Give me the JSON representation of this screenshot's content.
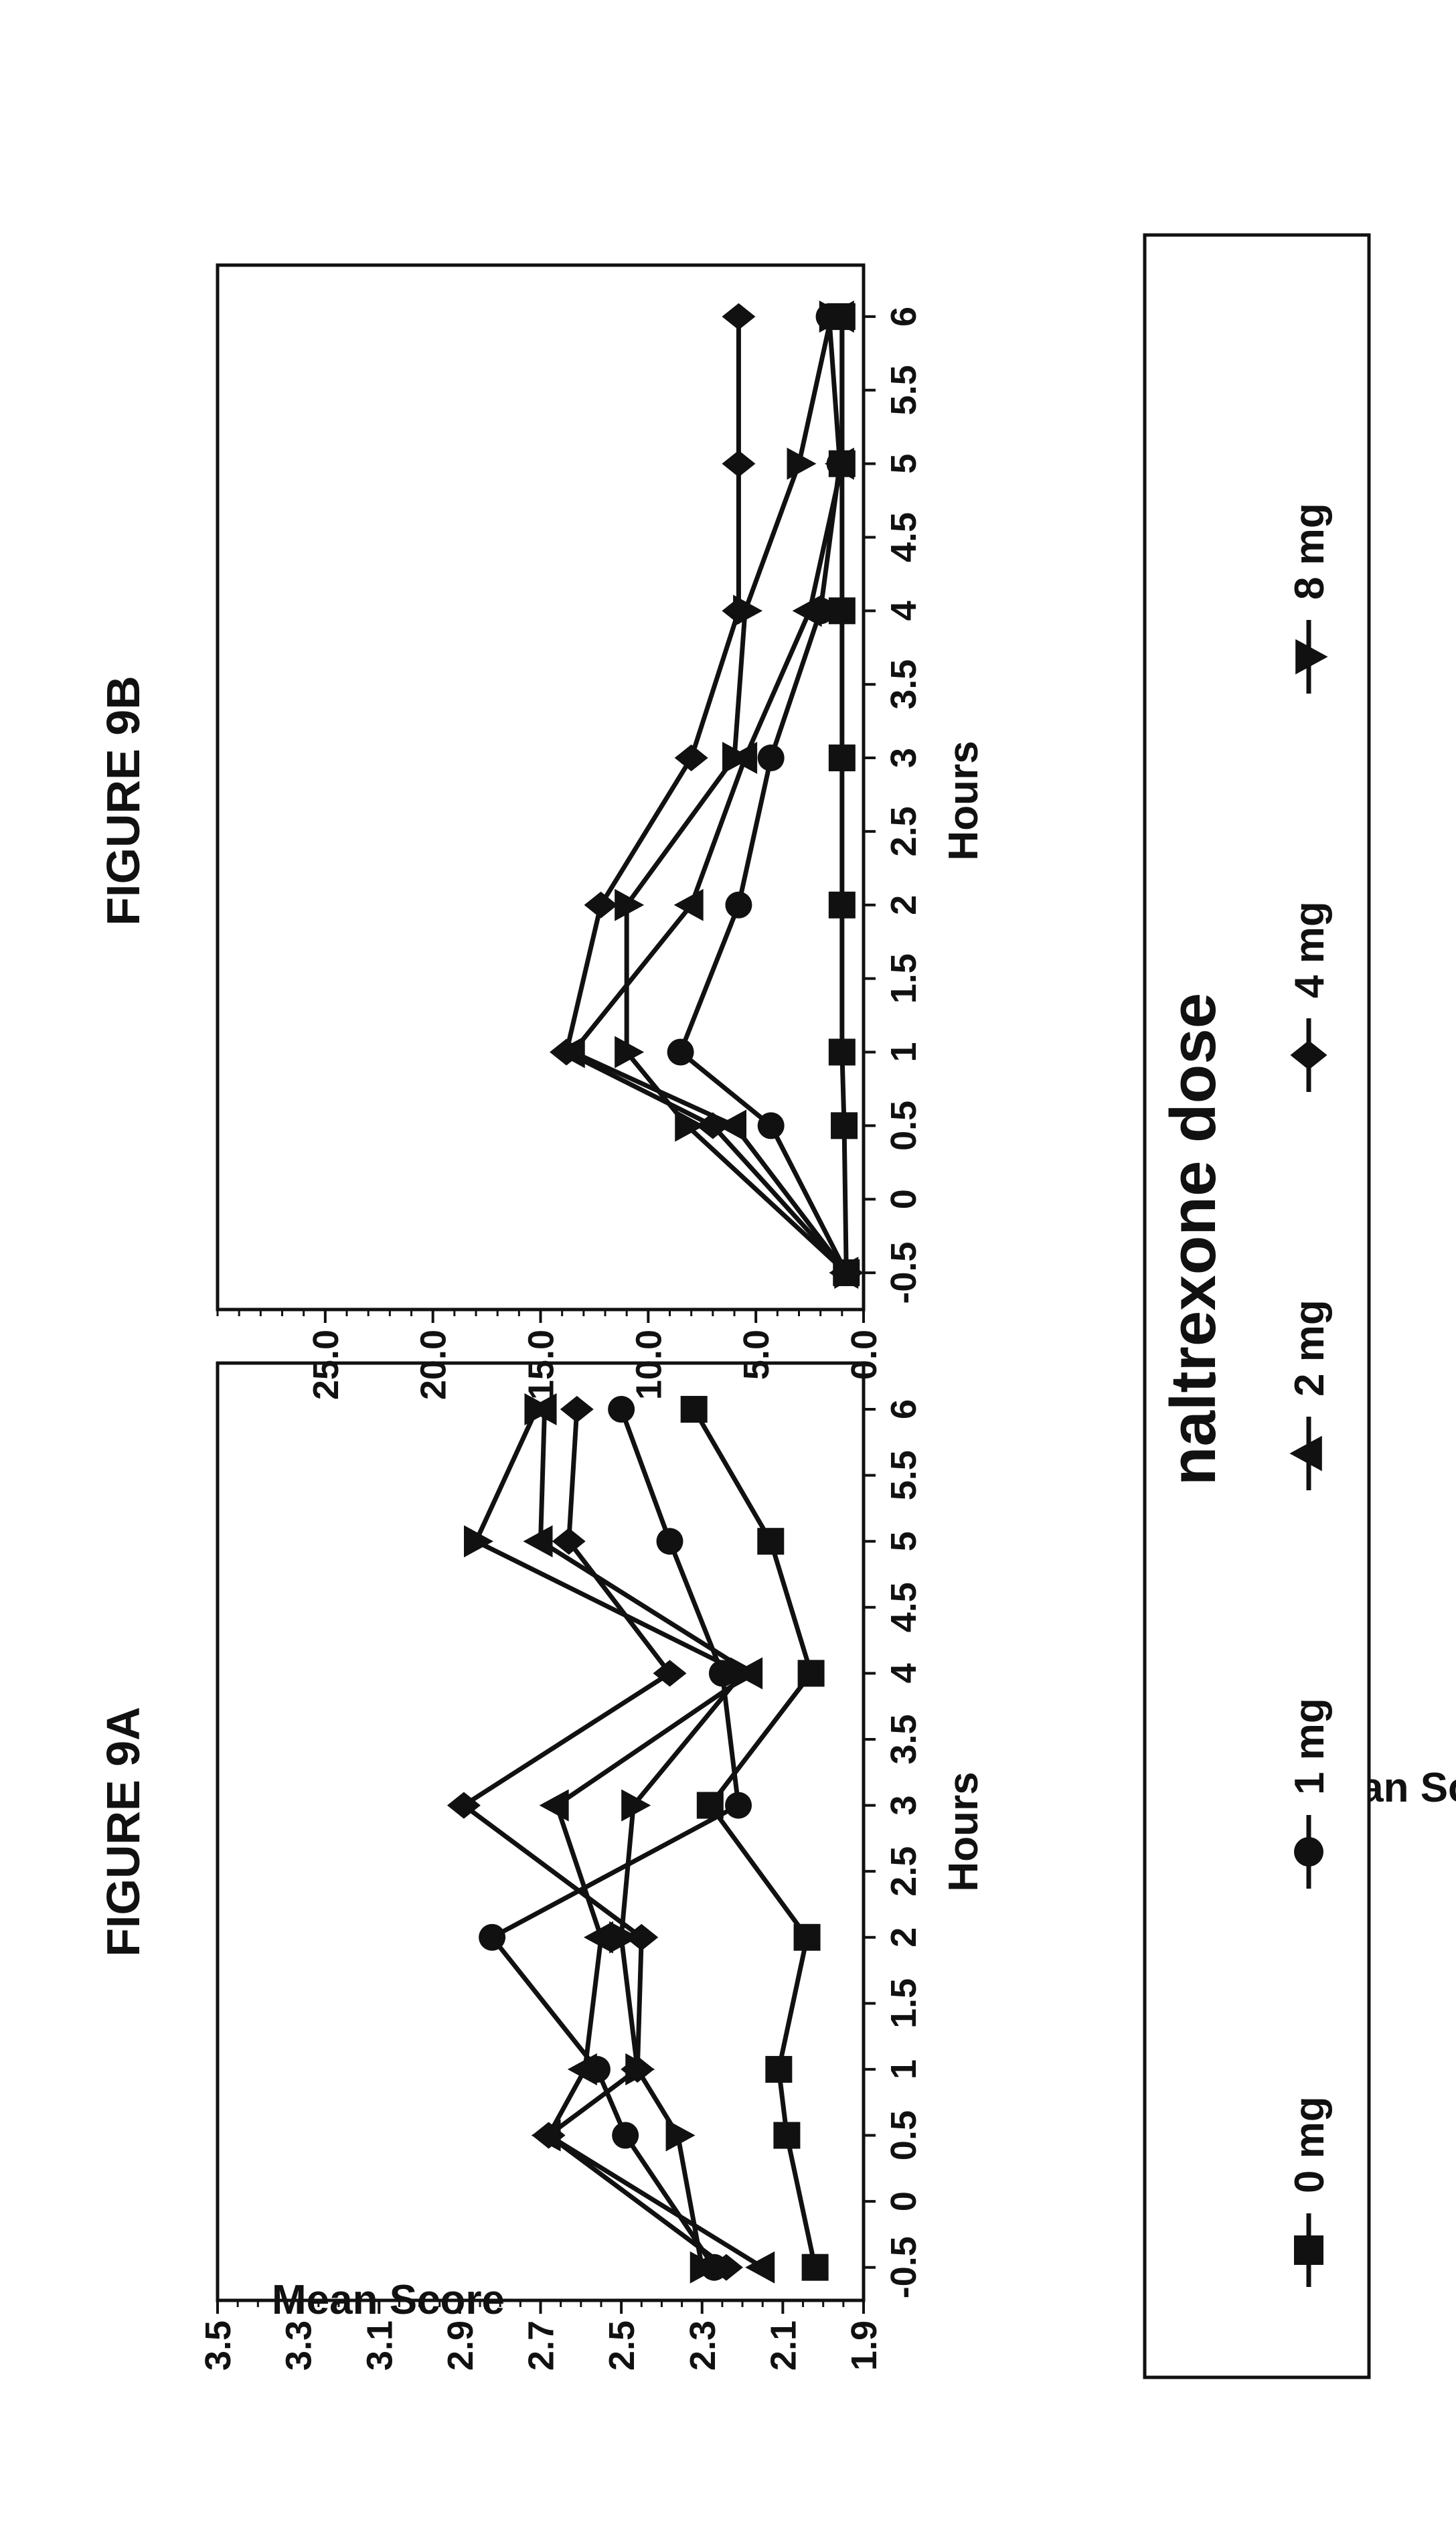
{
  "chart_data": [
    {
      "type": "line",
      "title": "FIGURE 9A",
      "xlabel": "Hours",
      "ylabel": "Mean Score",
      "x": [
        -0.5,
        0.5,
        1,
        2,
        3,
        4,
        5,
        6
      ],
      "xticks": [
        -0.5,
        0,
        0.5,
        1,
        1.5,
        2,
        2.5,
        3,
        3.5,
        4,
        4.5,
        5,
        5.5,
        6
      ],
      "xtick_labels": [
        "-0.5",
        "0",
        "0.5",
        "1",
        "1.5",
        "2",
        "2.5",
        "3",
        "3.5",
        "4",
        "4.5",
        "5",
        "5.5",
        "6"
      ],
      "xlim": [
        -0.75,
        6.35
      ],
      "ylim": [
        1.9,
        3.5
      ],
      "yticks": [
        1.9,
        2.1,
        2.3,
        2.5,
        2.7,
        2.9,
        3.1,
        3.3,
        3.5
      ],
      "ytick_labels": [
        "1.9",
        "2.1",
        "2.3",
        "2.5",
        "2.7",
        "2.9",
        "3.1",
        "3.3",
        "3.5"
      ],
      "yminor_step": 0.05,
      "series": [
        {
          "name": "0 mg",
          "marker": "square",
          "values": [
            2.02,
            2.09,
            2.11,
            2.04,
            2.28,
            2.03,
            2.13,
            2.32
          ]
        },
        {
          "name": "1 mg",
          "marker": "circle",
          "values": [
            2.27,
            2.49,
            2.56,
            2.82,
            2.21,
            2.25,
            2.38,
            2.5
          ]
        },
        {
          "name": "2 mg",
          "marker": "triangle-up",
          "values": [
            2.15,
            2.68,
            2.59,
            2.55,
            2.66,
            2.18,
            2.7,
            2.69
          ]
        },
        {
          "name": "4 mg",
          "marker": "diamond",
          "values": [
            2.24,
            2.68,
            2.46,
            2.45,
            2.89,
            2.38,
            2.63,
            2.61
          ]
        },
        {
          "name": "8 mg",
          "marker": "triangle-down",
          "values": [
            2.3,
            2.36,
            2.46,
            2.5,
            2.47,
            2.2,
            2.86,
            2.71
          ]
        }
      ]
    },
    {
      "type": "line",
      "title": "FIGURE 9B",
      "xlabel": "Hours",
      "ylabel": "Mean Score",
      "x": [
        -0.5,
        0.5,
        1,
        2,
        3,
        4,
        5,
        6
      ],
      "xticks": [
        -0.5,
        0,
        0.5,
        1,
        1.5,
        2,
        2.5,
        3,
        3.5,
        4,
        4.5,
        5,
        5.5,
        6
      ],
      "xtick_labels": [
        "-0.5",
        "0",
        "0.5",
        "1",
        "1.5",
        "2",
        "2.5",
        "3",
        "3.5",
        "4",
        "4.5",
        "5",
        "5.5",
        "6"
      ],
      "xlim": [
        -0.75,
        6.35
      ],
      "ylim": [
        0,
        30
      ],
      "yticks": [
        0,
        5,
        10,
        15,
        20,
        25
      ],
      "ytick_labels": [
        "0.0",
        "5.0",
        "10.0",
        "15.0",
        "20.0",
        "25.0"
      ],
      "yminor_step": 1,
      "series": [
        {
          "name": "0 mg",
          "marker": "square",
          "values": [
            0.8,
            0.9,
            1.0,
            1.0,
            1.0,
            1.0,
            1.0,
            1.0
          ]
        },
        {
          "name": "1 mg",
          "marker": "circle",
          "values": [
            0.8,
            4.3,
            8.5,
            5.8,
            4.3,
            2.0,
            1.1,
            1.6
          ]
        },
        {
          "name": "2 mg",
          "marker": "triangle-up",
          "values": [
            0.8,
            6.0,
            13.5,
            8.0,
            5.5,
            2.5,
            1.0,
            1.0
          ]
        },
        {
          "name": "4 mg",
          "marker": "diamond",
          "values": [
            0.8,
            7.0,
            13.8,
            12.2,
            8.0,
            5.8,
            5.8,
            5.8
          ]
        },
        {
          "name": "8 mg",
          "marker": "triangle-down",
          "values": [
            0.8,
            8.2,
            11.0,
            11.0,
            6.0,
            5.5,
            3.0,
            1.5
          ]
        }
      ]
    }
  ],
  "legend": {
    "title": "naltrexone dose",
    "items": [
      "0 mg",
      "1 mg",
      "2 mg",
      "4 mg",
      "8 mg"
    ]
  }
}
